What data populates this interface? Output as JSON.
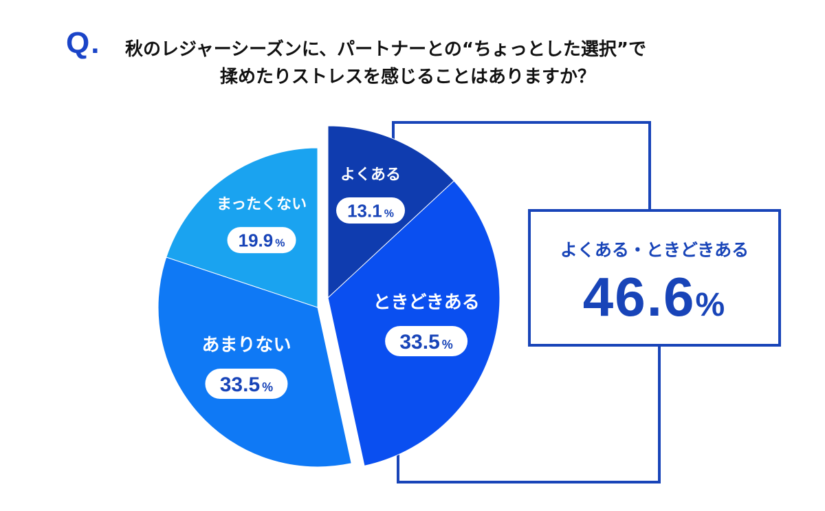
{
  "question": {
    "mark": "Q.",
    "line1": "秋のレジャーシーズンに、パートナーとの“ちょっとした選択”で",
    "line2": "揉めたりストレスを感じることはありますか？"
  },
  "chart_data": {
    "type": "pie",
    "unit": "%",
    "slices": [
      {
        "label": "よくある",
        "value": 13.1,
        "value_text": "13.1",
        "color": "#0f3caf"
      },
      {
        "label": "ときどきある",
        "value": 33.5,
        "value_text": "33.5",
        "color": "#0a4ff0"
      },
      {
        "label": "あまりない",
        "value": 33.5,
        "value_text": "33.5",
        "color": "#0f79f5"
      },
      {
        "label": "まったくない",
        "value": 19.9,
        "value_text": "19.9",
        "color": "#1aa3f0"
      }
    ],
    "exploded": [
      "よくある",
      "ときどきある"
    ]
  },
  "summary": {
    "label": "よくある・ときどきある",
    "value": "46.6",
    "unit": "%"
  },
  "colors": {
    "accent": "#1844b8",
    "pill_text": "#1844b8"
  }
}
